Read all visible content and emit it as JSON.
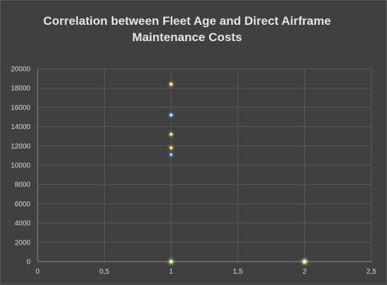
{
  "chart_data": {
    "type": "scatter",
    "title": "Correlation between Fleet Age and Direct Airframe Maintenance Costs",
    "title_lines": [
      "Correlation between Fleet Age and Direct Airframe",
      "Maintenance Costs"
    ],
    "xlabel": "",
    "ylabel": "",
    "xlim": [
      0,
      2.5
    ],
    "ylim": [
      0,
      20000
    ],
    "x_ticks": [
      "0",
      "0,5",
      "1",
      "1,5",
      "2",
      "2,5"
    ],
    "y_ticks": [
      "0",
      "2000",
      "4000",
      "6000",
      "8000",
      "10000",
      "12000",
      "14000",
      "16000",
      "18000",
      "20000"
    ],
    "grid": true,
    "legend": "none",
    "points": [
      {
        "x": 1,
        "y": 18400,
        "color": "#f2c94c"
      },
      {
        "x": 1,
        "y": 15200,
        "color": "#6fa8ff"
      },
      {
        "x": 1,
        "y": 13200,
        "color": "#a9d15a"
      },
      {
        "x": 1,
        "y": 11800,
        "color": "#f2b134"
      },
      {
        "x": 1,
        "y": 11100,
        "color": "#4a86e8"
      },
      {
        "x": 1,
        "y": 0,
        "color": "#8fc65a"
      },
      {
        "x": 2,
        "y": 0,
        "color": "#c9df7a"
      }
    ],
    "colors": {
      "background": "#404040",
      "grid": "#595959",
      "axis": "#8c8c8c",
      "text": "#d9d9d9"
    }
  }
}
